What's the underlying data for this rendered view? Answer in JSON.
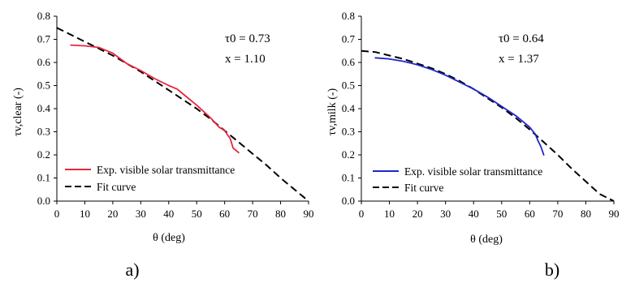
{
  "chart_data": [
    {
      "id": "a",
      "type": "line",
      "panel_label": "a)",
      "xlabel": "θ (deg)",
      "ylabel": "τv,clear (-)",
      "xlim": [
        0,
        90
      ],
      "ylim": [
        0.0,
        0.8
      ],
      "x_ticks": [
        0,
        10,
        20,
        30,
        40,
        50,
        60,
        70,
        80,
        90
      ],
      "y_ticks": [
        0.0,
        0.1,
        0.2,
        0.3,
        0.4,
        0.5,
        0.6,
        0.7,
        0.8
      ],
      "grid": false,
      "legend_position": "bottom-left",
      "annotation": [
        "τ0 = 0.73",
        "x = 1.10"
      ],
      "series": [
        {
          "name": "Exp. visible solar transmittance",
          "color": "#e8263d",
          "style": "solid",
          "x": [
            5,
            10,
            15,
            20,
            25,
            30,
            35,
            40,
            43,
            45,
            50,
            55,
            58,
            60,
            62,
            63,
            64,
            65
          ],
          "y": [
            0.675,
            0.672,
            0.665,
            0.64,
            0.595,
            0.565,
            0.53,
            0.5,
            0.485,
            0.465,
            0.415,
            0.36,
            0.32,
            0.305,
            0.27,
            0.23,
            0.22,
            0.21
          ]
        },
        {
          "name": "Fit curve",
          "color": "#000000",
          "style": "dashed",
          "x": [
            0,
            5,
            10,
            15,
            20,
            25,
            30,
            35,
            40,
            45,
            50,
            55,
            60,
            65,
            70,
            75,
            80,
            85,
            90
          ],
          "y": [
            0.75,
            0.72,
            0.69,
            0.66,
            0.63,
            0.595,
            0.56,
            0.52,
            0.48,
            0.44,
            0.4,
            0.355,
            0.305,
            0.255,
            0.205,
            0.155,
            0.1,
            0.05,
            0.0
          ]
        }
      ]
    },
    {
      "id": "b",
      "type": "line",
      "panel_label": "b)",
      "xlabel": "θ (deg)",
      "ylabel": "τv,milk (-)",
      "xlim": [
        0,
        90
      ],
      "ylim": [
        0.0,
        0.8
      ],
      "x_ticks": [
        0,
        10,
        20,
        30,
        40,
        50,
        60,
        70,
        80,
        90
      ],
      "y_ticks": [
        0.0,
        0.1,
        0.2,
        0.3,
        0.4,
        0.5,
        0.6,
        0.7,
        0.8
      ],
      "grid": false,
      "legend_position": "bottom-left",
      "annotation": [
        "τ0 = 0.64",
        "x = 1.37"
      ],
      "series": [
        {
          "name": "Exp. visible solar transmittance",
          "color": "#2026c8",
          "style": "solid",
          "x": [
            5,
            10,
            15,
            20,
            25,
            30,
            35,
            40,
            45,
            50,
            55,
            58,
            60,
            62,
            63,
            64,
            65
          ],
          "y": [
            0.62,
            0.615,
            0.605,
            0.59,
            0.57,
            0.545,
            0.515,
            0.485,
            0.45,
            0.41,
            0.37,
            0.34,
            0.32,
            0.29,
            0.26,
            0.235,
            0.2
          ]
        },
        {
          "name": "Fit curve",
          "color": "#000000",
          "style": "dashed",
          "x": [
            0,
            5,
            10,
            15,
            20,
            25,
            30,
            35,
            40,
            45,
            50,
            55,
            60,
            65,
            70,
            75,
            80,
            85,
            90
          ],
          "y": [
            0.65,
            0.645,
            0.63,
            0.615,
            0.595,
            0.575,
            0.55,
            0.52,
            0.485,
            0.445,
            0.405,
            0.36,
            0.31,
            0.255,
            0.2,
            0.14,
            0.085,
            0.03,
            0.0
          ]
        }
      ]
    }
  ]
}
